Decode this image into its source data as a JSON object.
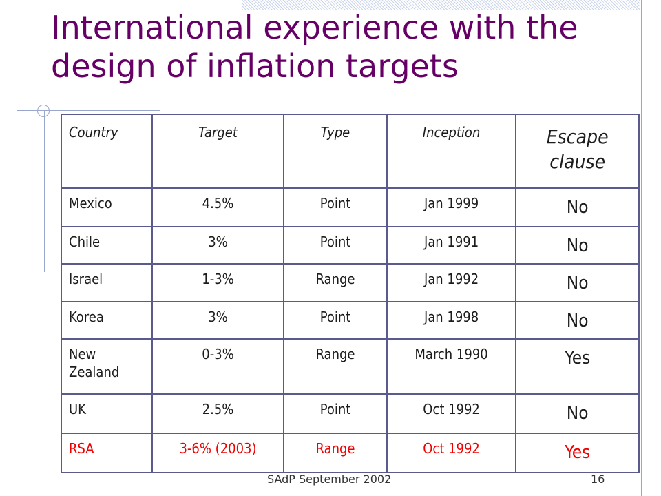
{
  "slide": {
    "title": "International experience with the design of inflation targets",
    "footer": "SAdP September 2002",
    "page_number": "16"
  },
  "table": {
    "headers": [
      "Country",
      "Target",
      "Type",
      "Inception",
      "Escape clause"
    ],
    "rows": [
      [
        "Mexico",
        "4.5%",
        "Point",
        "Jan 1999",
        "No"
      ],
      [
        "Chile",
        "3%",
        "Point",
        "Jan 1991",
        "No"
      ],
      [
        "Israel",
        "1-3%",
        "Range",
        "Jan 1992",
        "No"
      ],
      [
        "Korea",
        "3%",
        "Point",
        "Jan 1998",
        "No"
      ],
      [
        "New Zealand",
        "0-3%",
        "Range",
        "March 1990",
        "Yes"
      ],
      [
        "UK",
        "2.5%",
        "Point",
        "Oct 1992",
        "No"
      ],
      [
        "RSA",
        "3-6% (2003)",
        "Range",
        "Oct 1992",
        "Yes"
      ]
    ],
    "highlight_row_color": "#ee0000"
  },
  "colors": {
    "title": "#660066",
    "table_border": "#5a5a8c",
    "decoration": "#9aa6cc"
  }
}
